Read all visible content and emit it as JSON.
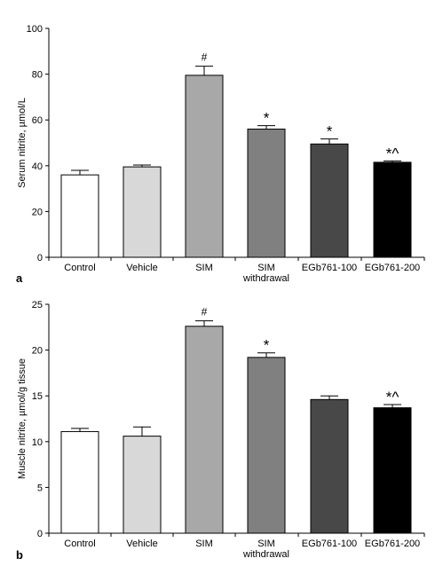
{
  "chart_data": [
    {
      "type": "bar",
      "panel_label": "a",
      "ylabel": "Serum nitrite, µmol/L",
      "ylim": [
        0,
        100
      ],
      "yticks": [
        "0",
        "20",
        "40",
        "60",
        "80",
        "100"
      ],
      "categories": [
        "Control",
        "Vehicle",
        "SIM",
        "SIM\nwithdrawal",
        "EGb761-100",
        "EGb761-200"
      ],
      "values": [
        36,
        39.5,
        79.5,
        56,
        49.5,
        41.5
      ],
      "errors": [
        2,
        0.8,
        4,
        1.5,
        2.2,
        0.6
      ],
      "annotations": [
        "",
        "",
        "#",
        "*",
        "*",
        "*^"
      ],
      "colors": [
        "#ffffff",
        "#d8d8d8",
        "#a8a8a8",
        "#808080",
        "#484848",
        "#000000"
      ],
      "grid": false,
      "legend": "none"
    },
    {
      "type": "bar",
      "panel_label": "b",
      "ylabel": "Muscle nitrite, µmol/g tissue",
      "ylim": [
        0,
        25
      ],
      "yticks": [
        "0",
        "5",
        "10",
        "15",
        "20",
        "25"
      ],
      "categories": [
        "Control",
        "Vehicle",
        "SIM",
        "SIM\nwithdrawal",
        "EGb761-100",
        "EGb761-200"
      ],
      "values": [
        11.1,
        10.6,
        22.6,
        19.2,
        14.6,
        13.7
      ],
      "errors": [
        0.35,
        1.0,
        0.6,
        0.5,
        0.4,
        0.35
      ],
      "annotations": [
        "",
        "",
        "#",
        "*",
        "",
        "*^"
      ],
      "colors": [
        "#ffffff",
        "#d8d8d8",
        "#a8a8a8",
        "#808080",
        "#484848",
        "#000000"
      ],
      "grid": false,
      "legend": "none"
    }
  ]
}
